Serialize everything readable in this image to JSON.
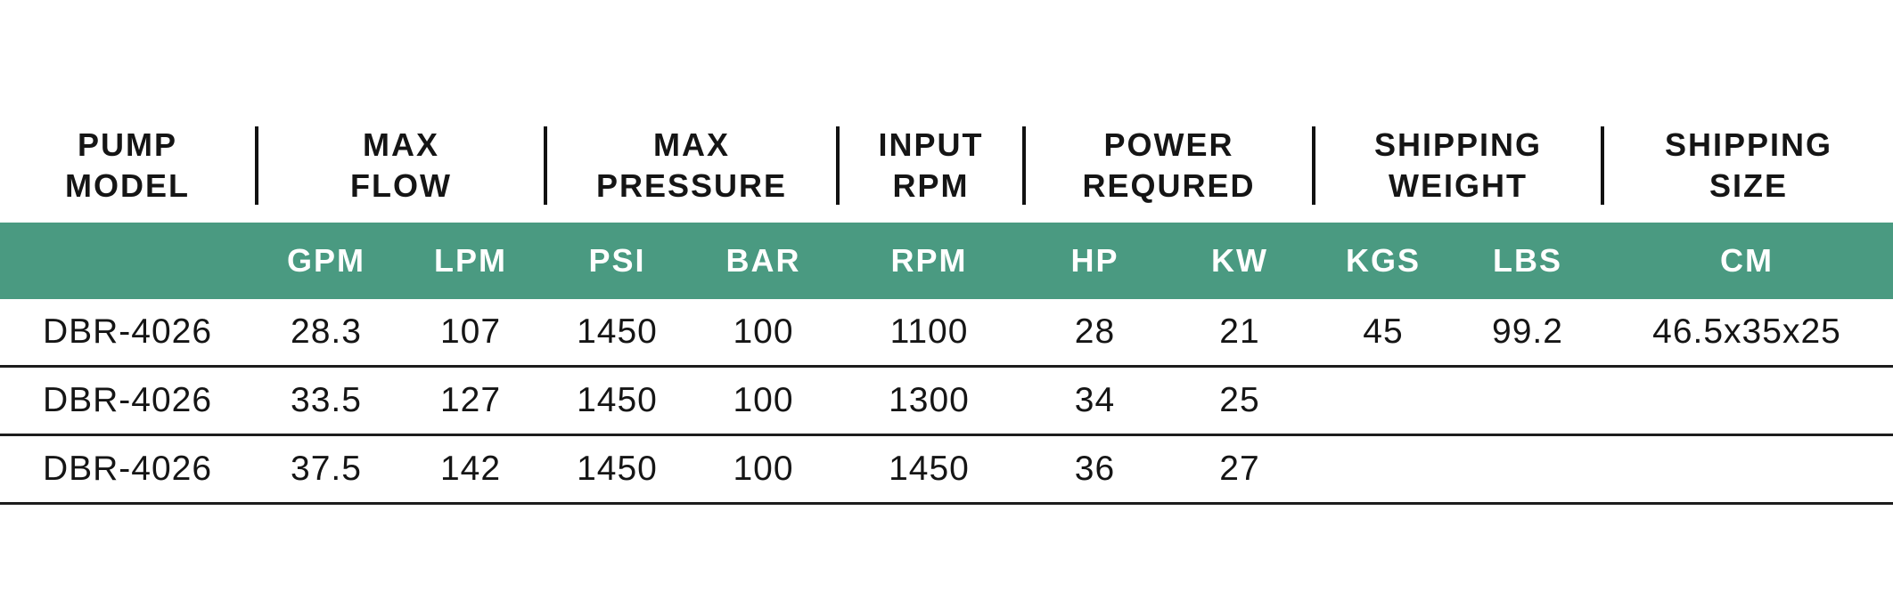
{
  "page": {
    "background": "#ffffff"
  },
  "colors": {
    "band_green": "#4a9a81",
    "band_text": "#ffffff",
    "text": "#151515",
    "header_divider": "#111111",
    "row_line": "#1c1c1c"
  },
  "table": {
    "header_groups": [
      {
        "line1": "PUMP",
        "line2": "MODEL"
      },
      {
        "line1": "MAX",
        "line2": "FLOW"
      },
      {
        "line1": "MAX",
        "line2": "PRESSURE"
      },
      {
        "line1": "INPUT",
        "line2": "RPM"
      },
      {
        "line1": "POWER",
        "line2": "REQURED"
      },
      {
        "line1": "SHIPPING",
        "line2": "WEIGHT"
      },
      {
        "line1": "SHIPPING",
        "line2": "SIZE"
      }
    ],
    "units": [
      "",
      "GPM",
      "LPM",
      "PSI",
      "BAR",
      "RPM",
      "HP",
      "KW",
      "KGS",
      "LBS",
      "CM"
    ],
    "rows": [
      [
        "DBR-4026",
        "28.3",
        "107",
        "1450",
        "100",
        "1100",
        "28",
        "21",
        "45",
        "99.2",
        "46.5x35x25"
      ],
      [
        "DBR-4026",
        "33.5",
        "127",
        "1450",
        "100",
        "1300",
        "34",
        "25",
        "",
        "",
        ""
      ],
      [
        "DBR-4026",
        "37.5",
        "142",
        "1450",
        "100",
        "1450",
        "36",
        "27",
        "",
        "",
        ""
      ]
    ]
  },
  "chart_data": {
    "type": "table",
    "title": "",
    "column_groups": [
      "PUMP MODEL",
      "MAX FLOW",
      "MAX PRESSURE",
      "INPUT RPM",
      "POWER REQURED",
      "SHIPPING WEIGHT",
      "SHIPPING SIZE"
    ],
    "columns": [
      "PUMP MODEL",
      "MAX FLOW GPM",
      "MAX FLOW LPM",
      "MAX PRESSURE PSI",
      "MAX PRESSURE BAR",
      "INPUT RPM",
      "POWER REQURED HP",
      "POWER REQURED KW",
      "SHIPPING WEIGHT KGS",
      "SHIPPING WEIGHT LBS",
      "SHIPPING SIZE CM"
    ],
    "rows": [
      [
        "DBR-4026",
        28.3,
        107,
        1450,
        100,
        1100,
        28,
        21,
        45,
        99.2,
        "46.5x35x25"
      ],
      [
        "DBR-4026",
        33.5,
        127,
        1450,
        100,
        1300,
        34,
        25,
        null,
        null,
        null
      ],
      [
        "DBR-4026",
        37.5,
        142,
        1450,
        100,
        1450,
        36,
        27,
        null,
        null,
        null
      ]
    ]
  }
}
